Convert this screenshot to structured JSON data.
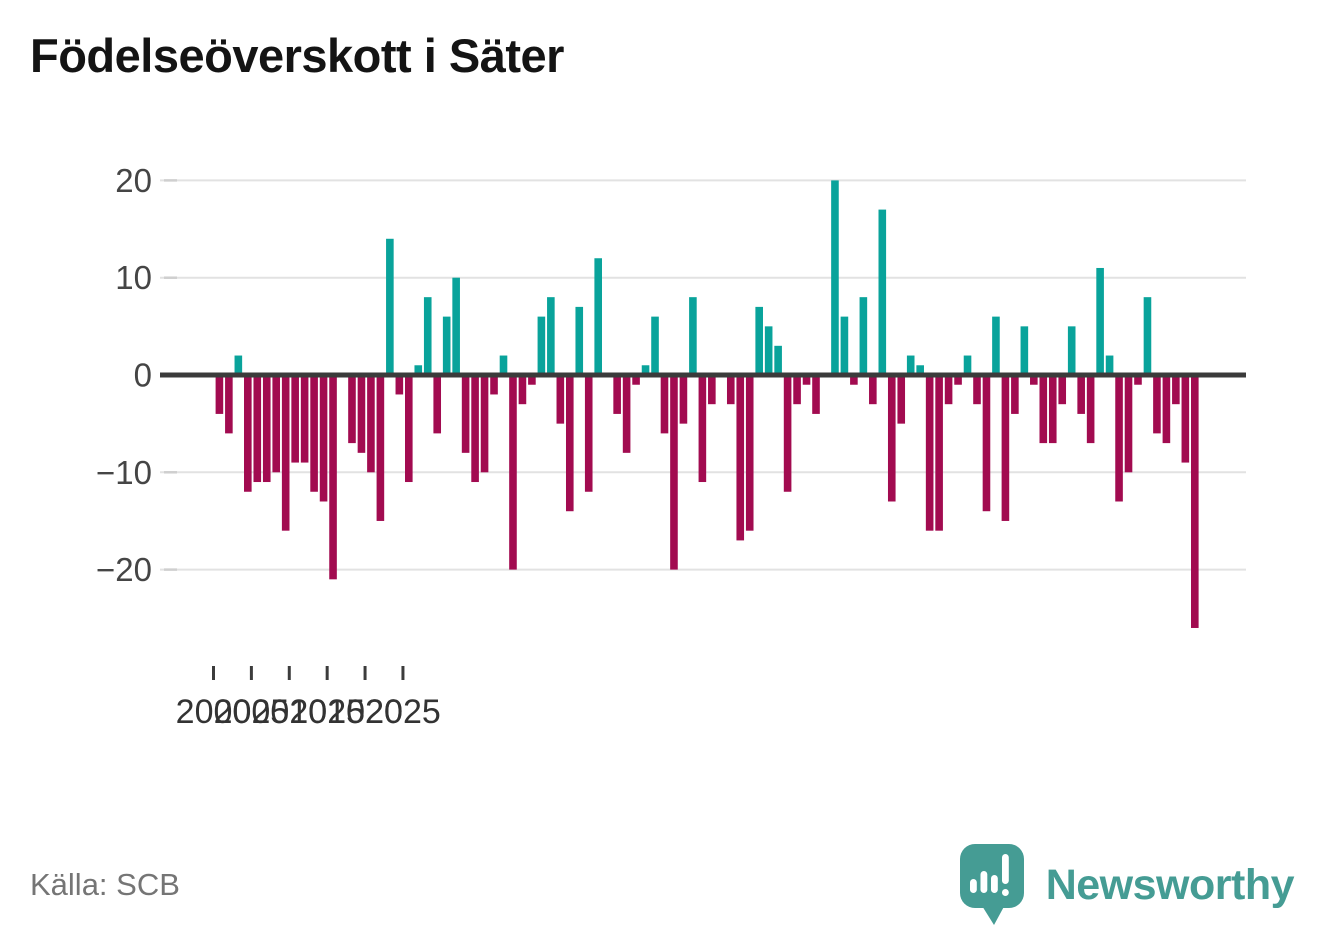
{
  "title": "Födelseöverskott i Säter",
  "source": {
    "label": "Källa: SCB"
  },
  "branding": {
    "name": "Newsworthy",
    "icon": "newsworthy-speech-bubble-chart-icon",
    "color": "#459c94"
  },
  "colors": {
    "positive": "#09a39b",
    "negative": "#a20b50",
    "grid": "#e2e2e2",
    "zero_line": "#3b3b3b",
    "y_tick_stub": "#cfcfcf",
    "axis_text": "#454545",
    "x_axis_text": "#333333"
  },
  "chart_data": {
    "type": "bar",
    "title": "Födelseöverskott i Säter",
    "frequency": "quarterly",
    "start_period": "2000 Q1",
    "end_period": "2025 Q4",
    "values": [
      -4,
      -6,
      2,
      -12,
      -11,
      -11,
      -10,
      -16,
      -9,
      -9,
      -12,
      -13,
      -21,
      0,
      -7,
      -8,
      -10,
      -15,
      14,
      -2,
      -11,
      1,
      8,
      -6,
      6,
      10,
      -8,
      -11,
      -10,
      -2,
      2,
      -20,
      -3,
      -1,
      6,
      8,
      -5,
      -14,
      7,
      -12,
      12,
      0,
      -4,
      -8,
      -1,
      1,
      6,
      -6,
      -20,
      -5,
      8,
      -11,
      -3,
      0,
      -3,
      -17,
      -16,
      7,
      5,
      3,
      -12,
      -3,
      -1,
      -4,
      0,
      20,
      6,
      -1,
      8,
      -3,
      17,
      -13,
      -5,
      2,
      1,
      -16,
      -16,
      -3,
      -1,
      2,
      -3,
      -14,
      6,
      -15,
      -4,
      5,
      -1,
      -7,
      -7,
      -3,
      5,
      -4,
      -7,
      11,
      2,
      -13,
      -10,
      -1,
      8,
      -6,
      -7,
      -3,
      -9,
      -26
    ],
    "y_tick_values": [
      20,
      10,
      0,
      -10,
      -20
    ],
    "y_tick_labels": [
      "20",
      "10",
      "0",
      "−10",
      "−20"
    ],
    "x_tick_years": [
      2000,
      2005,
      2010,
      2015,
      2020,
      2025
    ],
    "x_tick_labels": [
      "2000",
      "2005",
      "2010",
      "2015",
      "2020",
      "2025"
    ],
    "ylim": [
      -27,
      21
    ],
    "grid": "horizontal",
    "legend": "none"
  }
}
